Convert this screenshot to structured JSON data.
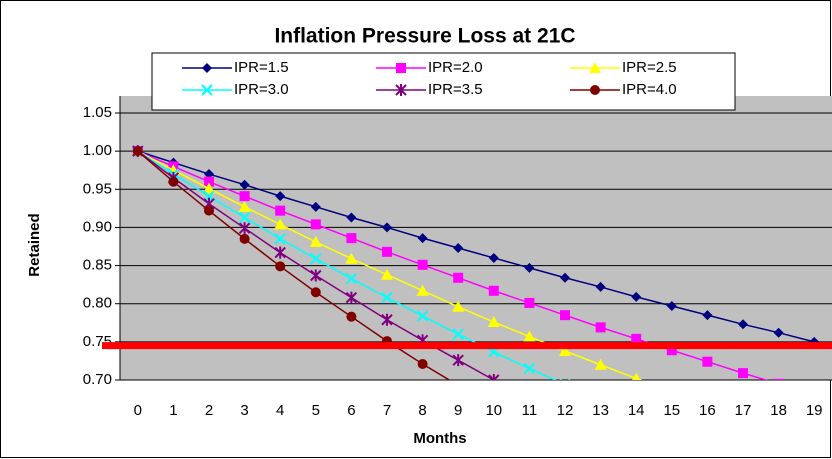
{
  "chart_data": {
    "type": "line",
    "title": "Inflation Pressure Loss at 21C",
    "x_label": "Months",
    "y_label": "Retained",
    "categories": [
      "0",
      "1",
      "2",
      "3",
      "4",
      "5",
      "6",
      "7",
      "8",
      "9",
      "10",
      "11",
      "12",
      "13",
      "14",
      "15",
      "16",
      "17",
      "18",
      "19"
    ],
    "series": [
      {
        "name": "IPR=1.5",
        "color": "#000080",
        "marker": "diamond",
        "values": [
          1.0,
          0.985,
          0.97,
          0.956,
          0.941,
          0.927,
          0.913,
          0.9,
          0.886,
          0.873,
          0.86,
          0.847,
          0.834,
          0.822,
          0.809,
          0.797,
          0.785,
          0.773,
          0.762,
          0.75
        ]
      },
      {
        "name": "IPR=2.0",
        "color": "#ff00ff",
        "marker": "square",
        "values": [
          1.0,
          0.98,
          0.96,
          0.941,
          0.922,
          0.904,
          0.886,
          0.868,
          0.851,
          0.834,
          0.817,
          0.801,
          0.785,
          0.769,
          0.754,
          0.739,
          0.724,
          0.709,
          0.695,
          null
        ]
      },
      {
        "name": "IPR=2.5",
        "color": "#ffff00",
        "marker": "triangle",
        "values": [
          1.0,
          0.975,
          0.951,
          0.927,
          0.904,
          0.881,
          0.859,
          0.838,
          0.817,
          0.796,
          0.776,
          0.757,
          0.738,
          0.72,
          0.702,
          0.684,
          null,
          null,
          null,
          null
        ]
      },
      {
        "name": "IPR=3.0",
        "color": "#00ffff",
        "marker": "x",
        "values": [
          1.0,
          0.97,
          0.941,
          0.913,
          0.885,
          0.859,
          0.833,
          0.808,
          0.784,
          0.76,
          0.737,
          0.715,
          0.694,
          null,
          null,
          null,
          null,
          null,
          null,
          null
        ]
      },
      {
        "name": "IPR=3.5",
        "color": "#800080",
        "marker": "star",
        "values": [
          1.0,
          0.965,
          0.931,
          0.899,
          0.867,
          0.837,
          0.808,
          0.779,
          0.752,
          0.726,
          0.7,
          0.676,
          null,
          null,
          null,
          null,
          null,
          null,
          null,
          null
        ]
      },
      {
        "name": "IPR=4.0",
        "color": "#800000",
        "marker": "circle",
        "values": [
          1.0,
          0.96,
          0.922,
          0.885,
          0.849,
          0.815,
          0.783,
          0.751,
          0.721,
          0.693,
          null,
          null,
          null,
          null,
          null,
          null,
          null,
          null,
          null,
          null
        ]
      }
    ],
    "hline": {
      "value": 0.745,
      "color": "#ff0000"
    },
    "ylim": [
      0.7,
      1.05
    ],
    "yticks": [
      {
        "value": 0.7,
        "label": "0.70"
      },
      {
        "value": 0.75,
        "label": "0.75"
      },
      {
        "value": 0.8,
        "label": "0.80"
      },
      {
        "value": 0.85,
        "label": "0.85"
      },
      {
        "value": 0.9,
        "label": "0.90"
      },
      {
        "value": 0.95,
        "label": "0.95"
      },
      {
        "value": 1.0,
        "label": "1.00"
      },
      {
        "value": 1.05,
        "label": "1.05"
      }
    ],
    "grid": true
  }
}
